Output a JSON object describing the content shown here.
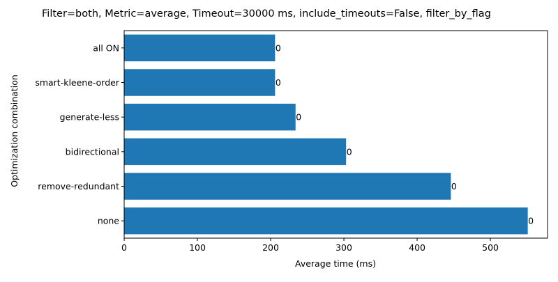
{
  "chart_data": {
    "type": "bar",
    "orientation": "horizontal",
    "title": "Filter=both, Metric=average, Timeout=30000 ms, include_timeouts=False, filter_by_flag",
    "xlabel": "Average time (ms)",
    "ylabel": "Optimization combination",
    "categories": [
      "none",
      "remove-redundant",
      "bidirectional",
      "generate-less",
      "smart-kleene-order",
      "all ON"
    ],
    "values": [
      551,
      446,
      303,
      234,
      206,
      206
    ],
    "bar_labels": [
      "0",
      "0",
      "0",
      "0",
      "0",
      "0"
    ],
    "xlim": [
      0,
      578
    ],
    "xticks": [
      0,
      100,
      200,
      300,
      400,
      500
    ],
    "bar_color": "#1f77b4",
    "grid": false,
    "legend": "none"
  }
}
